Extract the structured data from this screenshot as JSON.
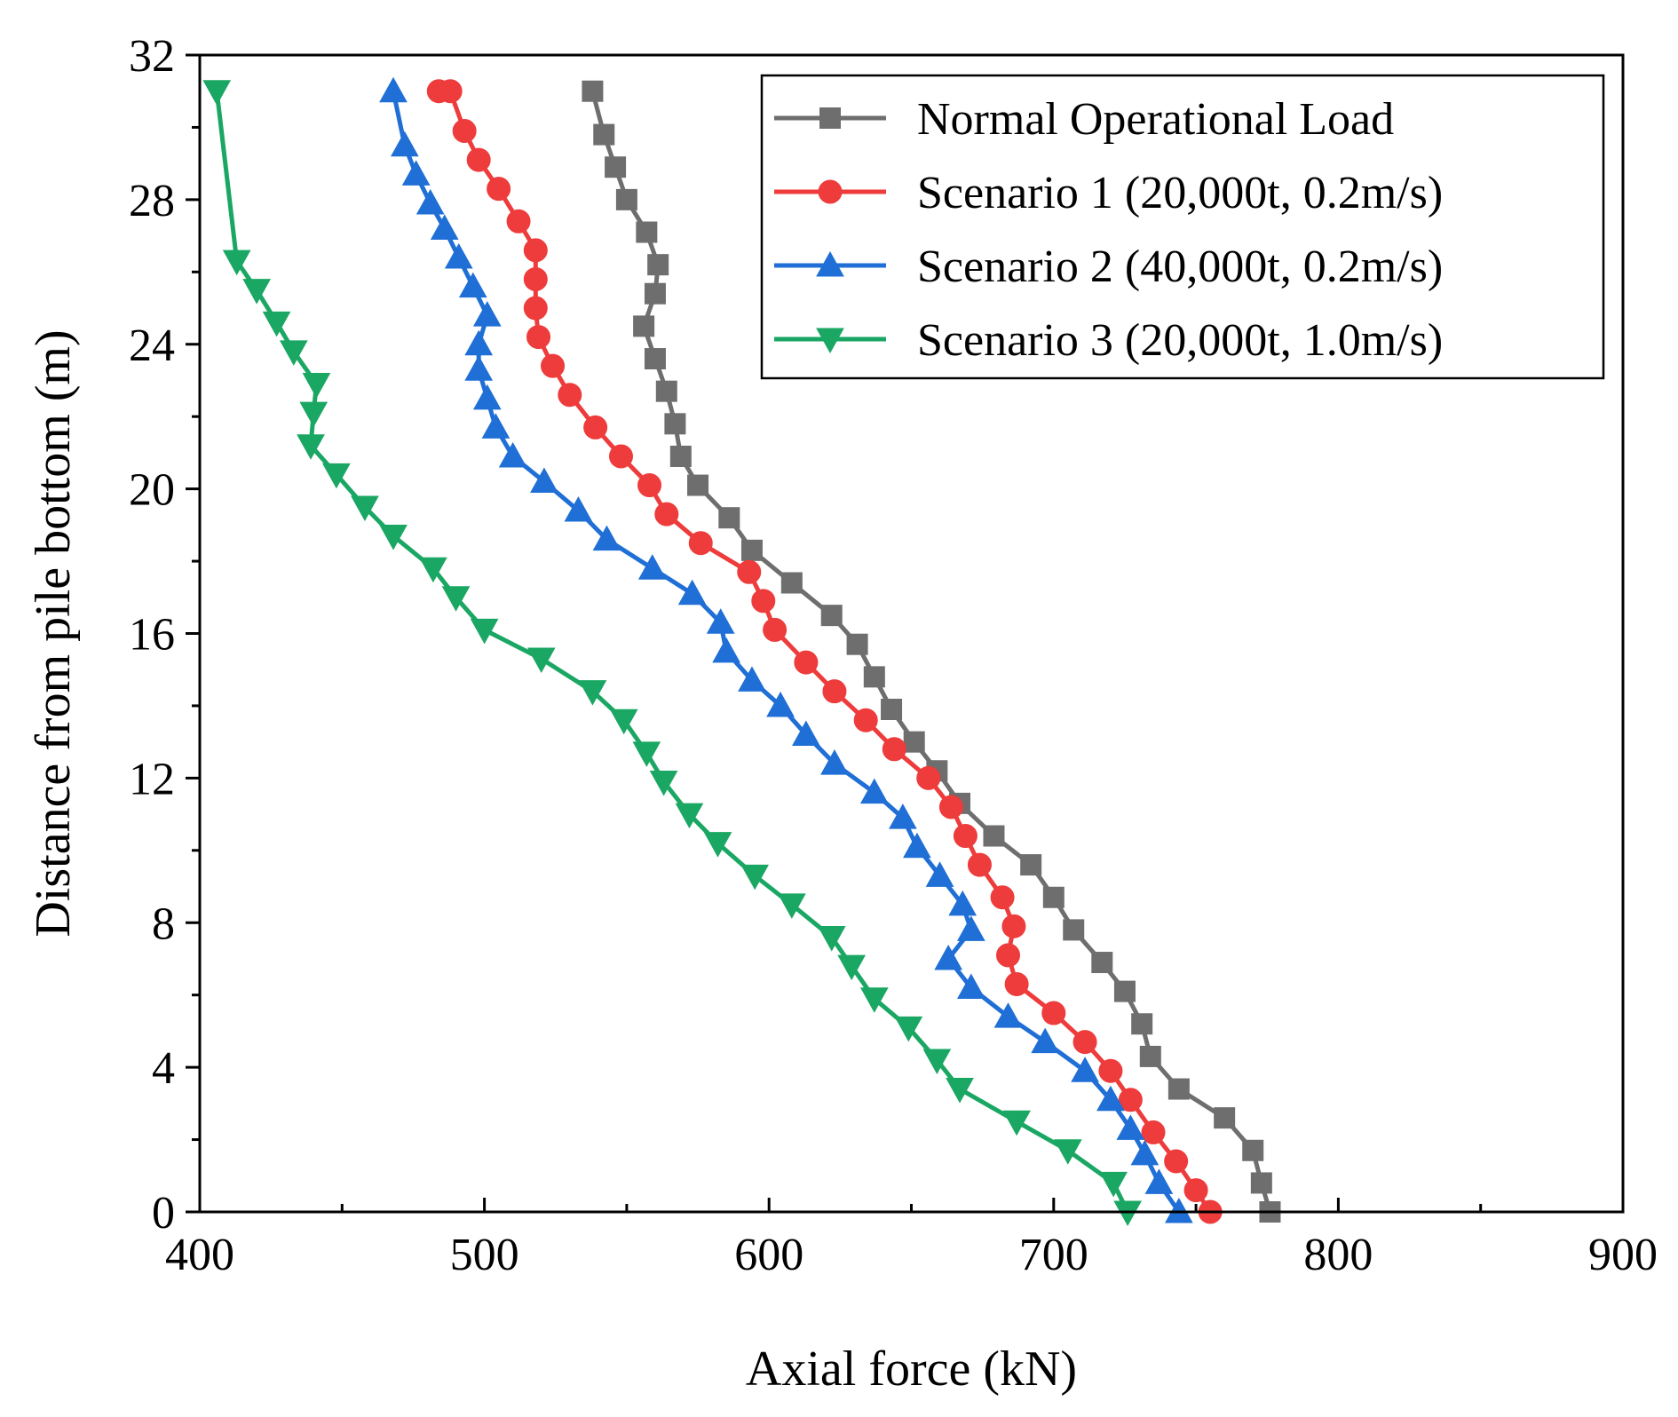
{
  "chart_data": {
    "type": "line",
    "title": "",
    "xlabel": "Axial force (kN)",
    "ylabel": "Distance from pile bottom (m)",
    "xlim": [
      400,
      900
    ],
    "ylim": [
      0,
      32
    ],
    "xticks": [
      "400",
      "500",
      "600",
      "700",
      "800",
      "900"
    ],
    "yticks": [
      "0",
      "4",
      "8",
      "12",
      "16",
      "20",
      "24",
      "28",
      "32"
    ],
    "legend_position": "top-right",
    "series": [
      {
        "name": "Normal Operational Load",
        "color": "#6e6e6e",
        "marker": "square",
        "x": [
          776,
          773,
          770,
          760,
          744,
          734,
          731,
          725,
          717,
          707,
          700,
          692,
          679,
          667,
          659,
          651,
          643,
          637,
          631,
          622,
          608,
          594,
          586,
          575,
          569,
          567,
          564,
          560,
          556,
          560,
          561,
          557,
          550,
          546,
          542,
          538
        ],
        "y": [
          0,
          0.8,
          1.7,
          2.6,
          3.4,
          4.3,
          5.2,
          6.1,
          6.9,
          7.8,
          8.7,
          9.6,
          10.4,
          11.3,
          12.2,
          13.0,
          13.9,
          14.8,
          15.7,
          16.5,
          17.4,
          18.3,
          19.2,
          20.1,
          20.9,
          21.8,
          22.7,
          23.6,
          24.5,
          25.4,
          26.2,
          27.1,
          28.0,
          28.9,
          29.8,
          31.0
        ]
      },
      {
        "name": "Scenario 1 (20,000t, 0.2m/s)",
        "color": "#ee3b3b",
        "marker": "circle",
        "x": [
          755,
          750,
          743,
          735,
          727,
          720,
          711,
          700,
          687,
          684,
          686,
          682,
          674,
          669,
          664,
          656,
          644,
          634,
          623,
          613,
          602,
          598,
          593,
          576,
          564,
          558,
          548,
          539,
          530,
          524,
          519,
          518,
          518,
          518,
          512,
          505,
          498,
          493,
          488,
          484
        ],
        "y": [
          0,
          0.6,
          1.4,
          2.2,
          3.1,
          3.9,
          4.7,
          5.5,
          6.3,
          7.1,
          7.9,
          8.7,
          9.6,
          10.4,
          11.2,
          12.0,
          12.8,
          13.6,
          14.4,
          15.2,
          16.1,
          16.9,
          17.7,
          18.5,
          19.3,
          20.1,
          20.9,
          21.7,
          22.6,
          23.4,
          24.2,
          25.0,
          25.8,
          26.6,
          27.4,
          28.3,
          29.1,
          29.9,
          31.0,
          31.0
        ]
      },
      {
        "name": "Scenario 2 (40,000t, 0.2m/s)",
        "color": "#1f6fd6",
        "marker": "triangle-up",
        "x": [
          744,
          737,
          732,
          727,
          720,
          711,
          697,
          684,
          671,
          663,
          671,
          668,
          660,
          652,
          647,
          637,
          623,
          613,
          604,
          594,
          585,
          583,
          573,
          559,
          543,
          533,
          521,
          510,
          504,
          501,
          498,
          498,
          501,
          496,
          491,
          486,
          481,
          476,
          472,
          468
        ],
        "y": [
          0,
          0.8,
          1.6,
          2.3,
          3.1,
          3.9,
          4.7,
          5.4,
          6.2,
          7.0,
          7.8,
          8.5,
          9.3,
          10.1,
          10.9,
          11.6,
          12.4,
          13.2,
          14.0,
          14.7,
          15.5,
          16.3,
          17.1,
          17.8,
          18.6,
          19.4,
          20.2,
          20.9,
          21.7,
          22.5,
          23.3,
          24.0,
          24.8,
          25.6,
          26.4,
          27.2,
          27.9,
          28.7,
          29.5,
          31.0
        ]
      },
      {
        "name": "Scenario 3 (20,000t, 1.0m/s)",
        "color": "#1aa763",
        "marker": "triangle-down",
        "x": [
          726,
          721,
          705,
          687,
          667,
          659,
          649,
          637,
          629,
          622,
          608,
          595,
          582,
          572,
          563,
          557,
          549,
          538,
          520,
          500,
          490,
          482,
          468,
          458,
          448,
          439,
          440,
          441,
          433,
          427,
          420,
          413,
          406
        ],
        "y": [
          0,
          0.8,
          1.7,
          2.5,
          3.4,
          4.2,
          5.1,
          5.9,
          6.8,
          7.6,
          8.5,
          9.3,
          10.2,
          11.0,
          11.9,
          12.7,
          13.6,
          14.4,
          15.3,
          16.1,
          17.0,
          17.8,
          18.7,
          19.5,
          20.4,
          21.2,
          22.1,
          22.9,
          23.8,
          24.6,
          25.5,
          26.3,
          31.0
        ]
      }
    ]
  }
}
